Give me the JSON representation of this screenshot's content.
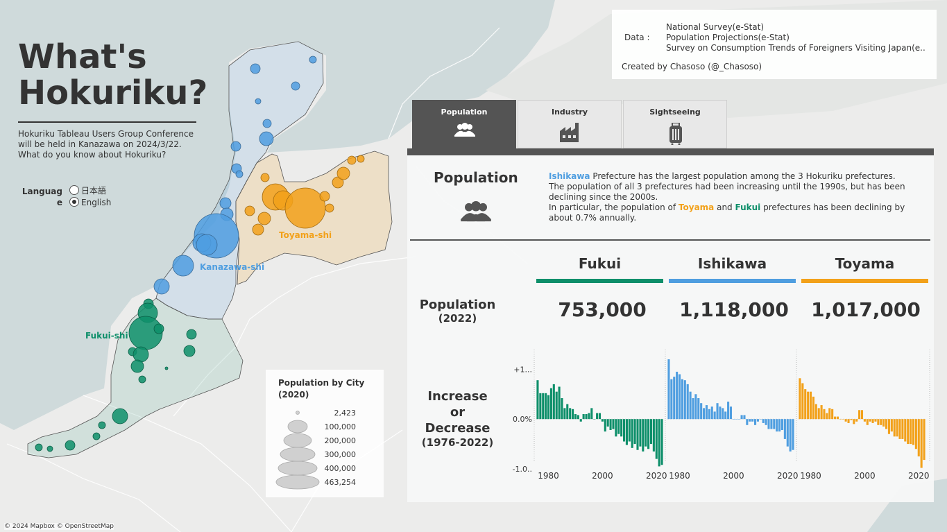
{
  "header": {
    "title_line1": "What's",
    "title_line2": "Hokuriku?",
    "subtitle": [
      "Hokuriku Tableau Users Group Conference",
      "will be held in Kanazawa on 2024/3/22.",
      "What do you know about Hokuriku?"
    ]
  },
  "language": {
    "label": "Language",
    "options": [
      {
        "label": "日本語",
        "selected": false
      },
      {
        "label": "English",
        "selected": true
      }
    ]
  },
  "info": {
    "data_label": "Data :",
    "sources": [
      "National Survey(e-Stat)",
      "Population Projections(e-Stat)",
      "Survey on Consumption Trends of Foreigners Visiting Japan(e.."
    ],
    "credit": "Created by Chasoso (@_Chasoso)"
  },
  "tabs": [
    {
      "label": "Population",
      "icon": "people-icon",
      "active": true
    },
    {
      "label": "Industry",
      "icon": "factory-icon",
      "active": false
    },
    {
      "label": "Sightseeing",
      "icon": "suitcase-icon",
      "active": false
    }
  ],
  "panel": {
    "heading": "Population",
    "description": {
      "p1_hl": "Ishikawa",
      "p1_rest": " Prefecture has the largest population among the 3 Hokuriku prefectures.",
      "p2": "The population of all 3 prefectures had been increasing until the 1990s, but has been declining since the 2000s.",
      "p3_a": "In particular, the population of ",
      "p3_toyama": "Toyama",
      "p3_and": " and ",
      "p3_fukui": "Fukui",
      "p3_b": " prefectures has been declining by about 0.7% annually."
    },
    "row1_label": "Population",
    "row1_sub": "(2022)",
    "row2_label": [
      "Increase",
      "or",
      "Decrease"
    ],
    "row2_sub": "(1976-2022)",
    "prefectures": [
      {
        "name": "Fukui",
        "color": "#0e8f6a",
        "population": "753,000"
      },
      {
        "name": "Ishikawa",
        "color": "#4f9ee0",
        "population": "1,118,000"
      },
      {
        "name": "Toyama",
        "color": "#f2a11a",
        "population": "1,017,000"
      }
    ]
  },
  "chart_data": {
    "type": "bar",
    "x": [
      1976,
      1977,
      1978,
      1979,
      1980,
      1981,
      1982,
      1983,
      1984,
      1985,
      1986,
      1987,
      1988,
      1989,
      1990,
      1991,
      1992,
      1993,
      1994,
      1995,
      1996,
      1997,
      1998,
      1999,
      2000,
      2001,
      2002,
      2003,
      2004,
      2005,
      2006,
      2007,
      2008,
      2009,
      2010,
      2011,
      2012,
      2013,
      2014,
      2015,
      2016,
      2017,
      2018,
      2019,
      2020,
      2021,
      2022
    ],
    "ytick_labels": [
      "+1...",
      "0.0%",
      "-1.0.."
    ],
    "xtick_labels": [
      "1980",
      "2000",
      "2020"
    ],
    "ylim": [
      -1.0,
      1.2
    ],
    "series": [
      {
        "name": "Fukui",
        "color": "#0e8f6a",
        "values": [
          0.78,
          0.52,
          0.52,
          0.52,
          0.48,
          0.62,
          0.7,
          0.55,
          0.65,
          0.42,
          0.22,
          0.3,
          0.22,
          0.2,
          0.1,
          0.08,
          -0.05,
          0.1,
          0.1,
          0.12,
          0.22,
          0.0,
          0.12,
          0.12,
          -0.05,
          -0.25,
          -0.15,
          -0.22,
          -0.2,
          -0.35,
          -0.3,
          -0.35,
          -0.45,
          -0.52,
          -0.45,
          -0.58,
          -0.5,
          -0.62,
          -0.55,
          -0.65,
          -0.55,
          -0.6,
          -0.5,
          -0.65,
          -0.8,
          -0.95,
          -0.92
        ]
      },
      {
        "name": "Ishikawa",
        "color": "#4f9ee0",
        "values": [
          1.2,
          0.8,
          0.85,
          0.95,
          0.9,
          0.8,
          0.78,
          0.7,
          0.55,
          0.42,
          0.5,
          0.42,
          0.32,
          0.22,
          0.28,
          0.2,
          0.25,
          0.15,
          0.32,
          0.25,
          0.22,
          0.15,
          0.35,
          0.25,
          0.0,
          0.0,
          0.0,
          0.08,
          0.08,
          -0.12,
          -0.05,
          -0.05,
          -0.12,
          -0.05,
          0.0,
          -0.08,
          -0.12,
          -0.2,
          -0.2,
          -0.2,
          -0.25,
          -0.25,
          -0.22,
          -0.4,
          -0.55,
          -0.65,
          -0.62
        ]
      },
      {
        "name": "Toyama",
        "color": "#f2a11a",
        "values": [
          0.82,
          0.72,
          0.6,
          0.55,
          0.55,
          0.45,
          0.3,
          0.22,
          0.28,
          0.2,
          0.12,
          0.22,
          0.2,
          0.05,
          0.05,
          0.0,
          0.0,
          -0.05,
          -0.08,
          -0.02,
          -0.1,
          -0.05,
          0.18,
          0.18,
          -0.05,
          -0.12,
          -0.05,
          -0.08,
          -0.05,
          -0.12,
          -0.12,
          -0.15,
          -0.2,
          -0.3,
          -0.25,
          -0.35,
          -0.35,
          -0.4,
          -0.4,
          -0.45,
          -0.5,
          -0.5,
          -0.52,
          -0.6,
          -0.75,
          -0.98,
          -0.82
        ]
      }
    ]
  },
  "map": {
    "city_labels": [
      {
        "name": "Toyama-shi",
        "color": "#f2a11a"
      },
      {
        "name": "Kanazawa-shi",
        "color": "#4f9ee0"
      },
      {
        "name": "Fukui-shi",
        "color": "#0e8f6a"
      }
    ],
    "legend_title": [
      "Population by City",
      "(2020)"
    ],
    "legend_values": [
      "2,423",
      "100,000",
      "200,000",
      "300,000",
      "400,000",
      "463,254"
    ],
    "attribution": "© 2024 Mapbox © OpenStreetMap",
    "colors": {
      "fukui": "#0e8f6a",
      "ishikawa": "#4f9ee0",
      "toyama": "#f2a11a"
    }
  }
}
